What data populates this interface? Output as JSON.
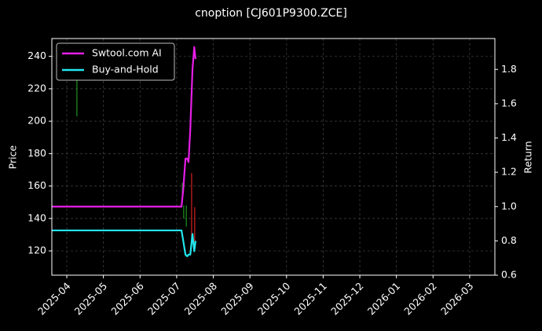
{
  "chart_data": {
    "type": "line",
    "title": "cnoption [CJ601P9300.ZCE]",
    "y_label": "Price",
    "y2_label": "Return",
    "grid": true,
    "legend": "upper left",
    "xlim": [
      2025.216,
      2026.224
    ],
    "xticks": [
      {
        "value": 2025.25,
        "label": "2025-04"
      },
      {
        "value": 2025.3333,
        "label": "2025-05"
      },
      {
        "value": 2025.4167,
        "label": "2025-06"
      },
      {
        "value": 2025.5,
        "label": "2025-07"
      },
      {
        "value": 2025.5833,
        "label": "2025-08"
      },
      {
        "value": 2025.6667,
        "label": "2025-09"
      },
      {
        "value": 2025.75,
        "label": "2025-10"
      },
      {
        "value": 2025.8333,
        "label": "2025-11"
      },
      {
        "value": 2025.9167,
        "label": "2025-12"
      },
      {
        "value": 2026.0,
        "label": "2026-01"
      },
      {
        "value": 2026.0833,
        "label": "2026-02"
      },
      {
        "value": 2026.1667,
        "label": "2026-03"
      }
    ],
    "ylim": [
      105,
      251
    ],
    "yticks": [
      120,
      140,
      160,
      180,
      200,
      220,
      240
    ],
    "y2lim": [
      0.6,
      1.98
    ],
    "y2ticks": [
      0.6,
      0.8,
      {
        "value": 1,
        "label": "1.0"
      },
      1.2,
      1.4,
      1.6,
      1.8
    ],
    "x": [
      2025.216,
      2025.511,
      2025.515,
      2025.52,
      2025.524,
      2025.527,
      2025.531,
      2025.536,
      2025.54,
      2025.543
    ],
    "series": [
      {
        "name": "Swtool.com AI",
        "color": "#e61ee6",
        "axis": "y2",
        "values": [
          1.0,
          1.0,
          1.1,
          1.28,
          1.28,
          1.26,
          1.45,
          1.8,
          1.93,
          1.86
        ]
      },
      {
        "name": "Buy-and-Hold",
        "color": "#22e6ee",
        "axis": "y2",
        "values": [
          0.861,
          0.861,
          0.8,
          0.72,
          0.71,
          0.72,
          0.72,
          0.84,
          0.74,
          0.8
        ]
      }
    ],
    "wicks": [
      {
        "x": 2025.273,
        "high": 226,
        "low": 203,
        "color": "#1a8a1a"
      },
      {
        "x": 2025.513,
        "high": 162,
        "low": 150,
        "color": "#1a8a1a"
      },
      {
        "x": 2025.516,
        "high": 148,
        "low": 140,
        "color": "#1a8a1a"
      },
      {
        "x": 2025.522,
        "high": 148,
        "low": 135,
        "color": "#1a8a1a"
      },
      {
        "x": 2025.534,
        "high": 168,
        "low": 128,
        "color": "#c81e1e"
      },
      {
        "x": 2025.541,
        "high": 147,
        "low": 120,
        "color": "#c81e1e"
      }
    ]
  }
}
